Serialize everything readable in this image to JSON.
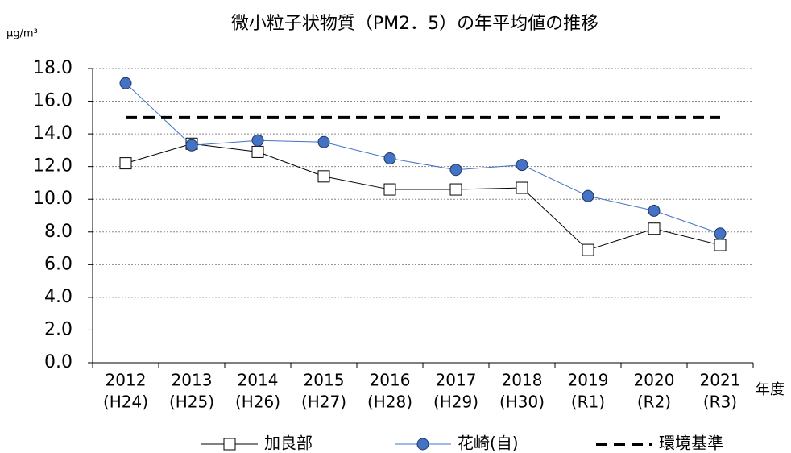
{
  "chart_data": {
    "type": "line",
    "title": "微小粒子状物質（PM2．5）の年平均値の推移",
    "y_unit": "μg/m³",
    "x_label": "年度",
    "categories": [
      "2012",
      "2013",
      "2014",
      "2015",
      "2016",
      "2017",
      "2018",
      "2019",
      "2020",
      "2021"
    ],
    "era_labels": [
      "(H24)",
      "(H25)",
      "(H26)",
      "(H27)",
      "(H28)",
      "(H29)",
      "(H30)",
      "(R1)",
      "(R2)",
      "(R3)"
    ],
    "series": [
      {
        "name": "加良部",
        "color": "#000000",
        "marker": "square",
        "marker_fill": "#ffffff",
        "dashed": false,
        "values": [
          12.2,
          13.4,
          12.9,
          11.4,
          10.6,
          10.6,
          10.7,
          6.9,
          8.2,
          7.2
        ]
      },
      {
        "name": "花崎(自)",
        "color": "#4472c4",
        "marker": "circle",
        "marker_fill": "#4472c4",
        "dashed": false,
        "values": [
          17.1,
          13.3,
          13.6,
          13.5,
          12.5,
          11.8,
          12.1,
          10.2,
          9.3,
          7.9
        ]
      },
      {
        "name": "環境基準",
        "color": "#000000",
        "marker": "none",
        "dashed": true,
        "values": [
          15,
          15,
          15,
          15,
          15,
          15,
          15,
          15,
          15,
          15
        ]
      }
    ],
    "ylim": [
      0,
      18
    ],
    "yticks": [
      {
        "value": 0,
        "label": "0.0"
      },
      {
        "value": 2,
        "label": "2.0"
      },
      {
        "value": 4,
        "label": "4.0"
      },
      {
        "value": 6,
        "label": "6.0"
      },
      {
        "value": 8,
        "label": "8.0"
      },
      {
        "value": 10,
        "label": "10.0"
      },
      {
        "value": 12,
        "label": "12.0"
      },
      {
        "value": 14,
        "label": "14.0"
      },
      {
        "value": 16,
        "label": "16.0"
      },
      {
        "value": 18,
        "label": "18.0"
      }
    ],
    "grid": true,
    "legend": "bottom"
  }
}
